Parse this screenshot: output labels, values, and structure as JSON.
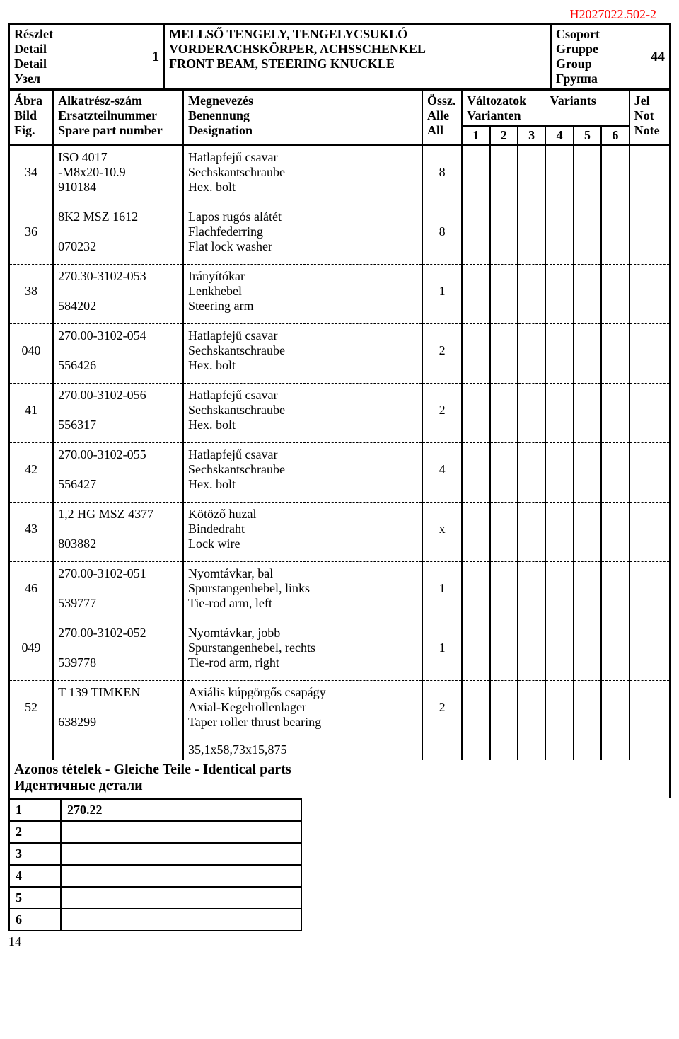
{
  "doc_code": "H2027022.502-2",
  "detail_labels": [
    "Részlet",
    "Detail",
    "Detail",
    "Узел"
  ],
  "detail_number": "1",
  "title_lines": [
    "MELLSŐ TENGELY, TENGELYCSUKLÓ",
    "VORDERACHSKÖRPER, ACHSSCHENKEL",
    "FRONT BEAM, STEERING KNUCKLE"
  ],
  "group_labels": [
    "Csoport",
    "Gruppe",
    "Group",
    "Группа"
  ],
  "group_number": "44",
  "col_fig": [
    "Ábra",
    "Bild",
    "Fig."
  ],
  "col_part": [
    "Alkatrész-szám",
    "Ersatzteilnummer",
    "Spare part number"
  ],
  "col_desc": [
    "Megnevezés",
    "Benennung",
    "Designation"
  ],
  "col_all": [
    "Össz.",
    "Alle",
    "All"
  ],
  "col_variants_top": [
    "Változatok",
    "Varianten"
  ],
  "col_variants_label": "Variants",
  "variant_nums": [
    "1",
    "2",
    "3",
    "4",
    "5",
    "6"
  ],
  "col_note": [
    "Jel",
    "Not",
    "Note"
  ],
  "rows": [
    {
      "fig": "34",
      "part": [
        "ISO 4017",
        "-M8x20-10.9",
        "910184"
      ],
      "desc": [
        "Hatlapfejű csavar",
        "Sechskantschraube",
        "Hex. bolt"
      ],
      "all": "8"
    },
    {
      "fig": "36",
      "part": [
        "8K2 MSZ 1612",
        "",
        "070232"
      ],
      "desc": [
        "Lapos rugós alátét",
        "Flachfederring",
        "Flat lock washer"
      ],
      "all": "8"
    },
    {
      "fig": "38",
      "part": [
        "270.30-3102-053",
        "",
        "584202"
      ],
      "desc": [
        "Irányítókar",
        "Lenkhebel",
        "Steering arm"
      ],
      "all": "1"
    },
    {
      "fig": "040",
      "part": [
        "270.00-3102-054",
        "",
        "556426"
      ],
      "desc": [
        "Hatlapfejű csavar",
        "Sechskantschraube",
        "Hex. bolt"
      ],
      "all": "2"
    },
    {
      "fig": "41",
      "part": [
        "270.00-3102-056",
        "",
        "556317"
      ],
      "desc": [
        "Hatlapfejű csavar",
        "Sechskantschraube",
        "Hex. bolt"
      ],
      "all": "2"
    },
    {
      "fig": "42",
      "part": [
        "270.00-3102-055",
        "",
        "556427"
      ],
      "desc": [
        "Hatlapfejű csavar",
        "Sechskantschraube",
        "Hex. bolt"
      ],
      "all": "4"
    },
    {
      "fig": "43",
      "part": [
        "1,2 HG MSZ 4377",
        "",
        "803882"
      ],
      "desc": [
        "Kötöző huzal",
        "Bindedraht",
        "Lock wire"
      ],
      "all": "x"
    },
    {
      "fig": "46",
      "part": [
        "270.00-3102-051",
        "",
        "539777"
      ],
      "desc": [
        "Nyomtávkar, bal",
        "Spurstangenhebel, links",
        "Tie-rod arm, left"
      ],
      "all": "1"
    },
    {
      "fig": "049",
      "part": [
        "270.00-3102-052",
        "",
        "539778"
      ],
      "desc": [
        "Nyomtávkar, jobb",
        "Spurstangenhebel, rechts",
        "Tie-rod arm, right"
      ],
      "all": "1"
    },
    {
      "fig": "52",
      "part": [
        "T 139 TIMKEN",
        "",
        "638299"
      ],
      "desc": [
        "Axiális kúpgörgős csapágy",
        "Axial-Kegelrollenlager",
        "Taper roller thrust bearing"
      ],
      "all": "2"
    }
  ],
  "dimension_line": "35,1x58,73x15,875",
  "identical_title": [
    "Azonos tételek - Gleiche Teile - Identical parts",
    "Идентичные детали"
  ],
  "identical_rows": [
    {
      "n": "1",
      "val": "270.22"
    },
    {
      "n": "2",
      "val": ""
    },
    {
      "n": "3",
      "val": ""
    },
    {
      "n": "4",
      "val": ""
    },
    {
      "n": "5",
      "val": ""
    },
    {
      "n": "6",
      "val": ""
    }
  ],
  "page_number": "14"
}
